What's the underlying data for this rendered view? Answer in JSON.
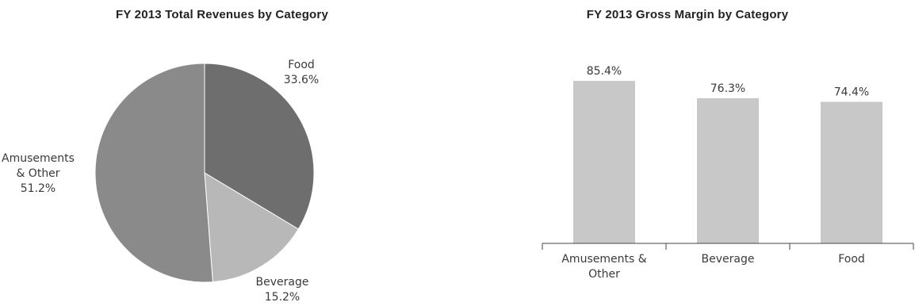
{
  "chart_data": [
    {
      "type": "pie",
      "title": "FY 2013 Total Revenues by Category",
      "slices": [
        {
          "label": "Food",
          "value": 33.6,
          "value_label": "33.6%",
          "color": "#6e6e6e"
        },
        {
          "label": "Beverage",
          "value": 15.2,
          "value_label": "15.2%",
          "color": "#b8b8b8"
        },
        {
          "label": "Amusements & Other",
          "value": 51.2,
          "value_label": "51.2%",
          "color": "#8a8a8a"
        }
      ]
    },
    {
      "type": "bar",
      "title": "FY 2013 Gross Margin by Category",
      "categories": [
        "Amusements & Other",
        "Beverage",
        "Food"
      ],
      "values": [
        85.4,
        76.3,
        74.4
      ],
      "value_labels": [
        "85.4%",
        "76.3%",
        "74.4%"
      ],
      "bar_color": "#c8c8c8",
      "ylim": [
        0,
        100
      ],
      "grid": false,
      "legend": false
    }
  ]
}
